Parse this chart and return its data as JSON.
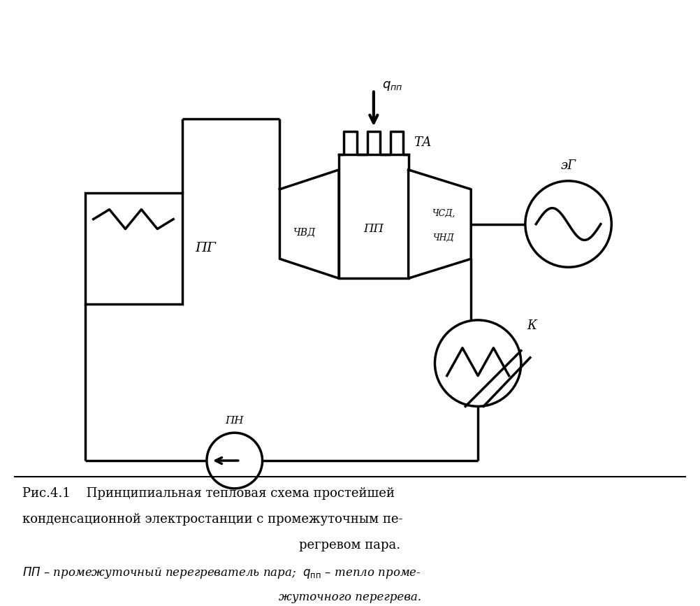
{
  "bg_color": "#ffffff",
  "line_color": "#000000",
  "line_width": 2.5,
  "label_PG": "ПГ",
  "label_TA": "ТА",
  "label_EG": "эГ",
  "label_ChVD": "ЧВД",
  "label_PP": "ПП",
  "label_ChSD": "ЧСД,",
  "label_ChND": "ЧНД",
  "label_K": "К",
  "label_PN": "ПН",
  "label_qpp": "$q_{пп}$"
}
